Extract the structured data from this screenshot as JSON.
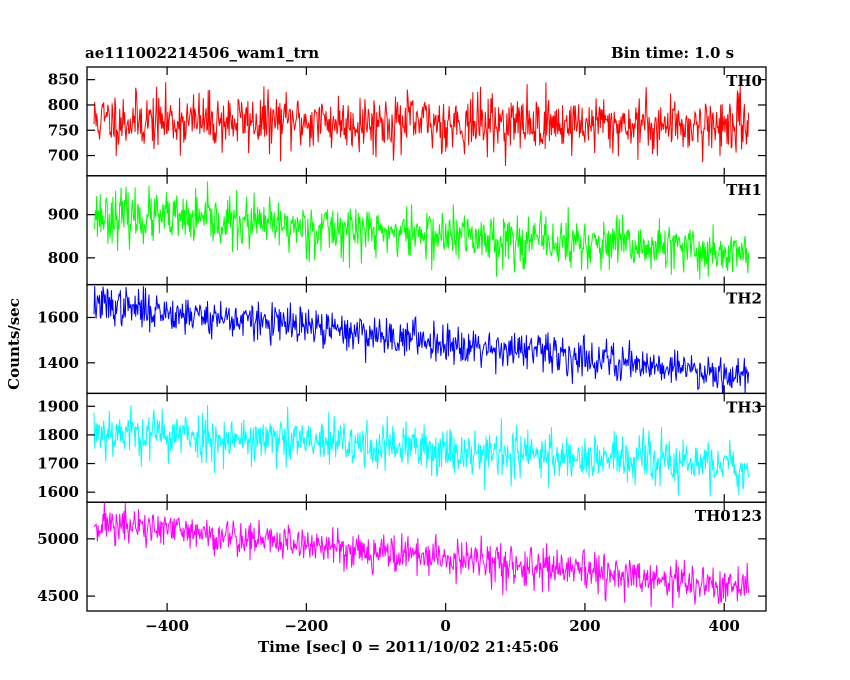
{
  "chart_data": {
    "type": "line",
    "title": "ae111002214506_wam1_trn",
    "subtitle": "Bin time: 1.0 s",
    "xlabel": "Time [sec] 0 = 2011/10/02 21:45:06",
    "ylabel": "Counts/sec",
    "xlim": [
      -515,
      460
    ],
    "xticks": [
      -400,
      -200,
      0,
      200,
      400
    ],
    "x_start": -505,
    "x_end": 435,
    "x_step": 1,
    "panels": [
      {
        "name": "TH0",
        "color": "#ff0000",
        "ylim": [
          660,
          875
        ],
        "yticks": [
          700,
          750,
          800,
          850
        ],
        "start_mean": 770,
        "end_mean": 760,
        "noise": 28,
        "seed": 11
      },
      {
        "name": "TH1",
        "color": "#00ff00",
        "ylim": [
          738,
          990
        ],
        "yticks": [
          800,
          900
        ],
        "start_mean": 900,
        "end_mean": 810,
        "noise": 30,
        "seed": 23
      },
      {
        "name": "TH2",
        "color": "#0000ff",
        "ylim": [
          1265,
          1745
        ],
        "yticks": [
          1400,
          1600
        ],
        "start_mean": 1660,
        "end_mean": 1345,
        "noise": 42,
        "seed": 37
      },
      {
        "name": "TH3",
        "color": "#00ffff",
        "ylim": [
          1565,
          1945
        ],
        "yticks": [
          1600,
          1700,
          1800,
          1900
        ],
        "start_mean": 1815,
        "end_mean": 1690,
        "noise": 44,
        "seed": 53
      },
      {
        "name": "TH0123",
        "color": "#ff00ff",
        "ylim": [
          4370,
          5320
        ],
        "yticks": [
          4500,
          5000
        ],
        "start_mean": 5140,
        "end_mean": 4560,
        "noise": 85,
        "seed": 71
      }
    ]
  }
}
